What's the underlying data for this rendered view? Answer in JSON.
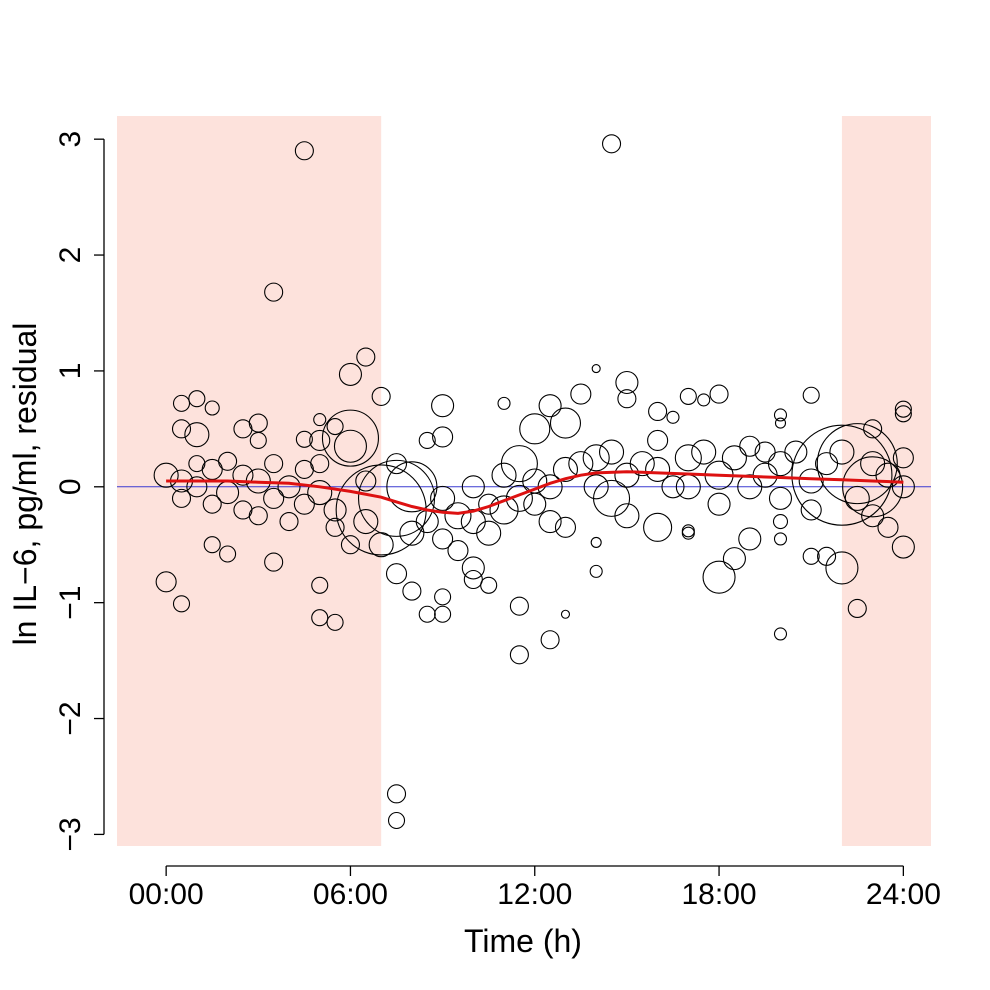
{
  "chart_data": {
    "type": "scatter",
    "xlabel": "Time (h)",
    "ylabel": "ln IL−6, pg/ml, residual",
    "x_unit": "hours",
    "xlim": [
      -1.6,
      24.9
    ],
    "ylim": [
      -3.1,
      3.2
    ],
    "x_ticks": [
      {
        "value": 0,
        "label": "00:00"
      },
      {
        "value": 6,
        "label": "06:00"
      },
      {
        "value": 12,
        "label": "12:00"
      },
      {
        "value": 18,
        "label": "18:00"
      },
      {
        "value": 24,
        "label": "24:00"
      }
    ],
    "y_ticks": [
      {
        "value": -3,
        "label": "−3"
      },
      {
        "value": -2,
        "label": "−2"
      },
      {
        "value": -1,
        "label": "−1"
      },
      {
        "value": 0,
        "label": "0"
      },
      {
        "value": 1,
        "label": "1"
      },
      {
        "value": 2,
        "label": "2"
      },
      {
        "value": 3,
        "label": "3"
      }
    ],
    "night_shading": [
      {
        "start": -1.6,
        "end": 7.0
      },
      {
        "start": 22.0,
        "end": 24.9
      }
    ],
    "colors": {
      "night_shading": "#fde2dc",
      "zero_line": "#3b3bd1",
      "trend_line": "#dd1111",
      "points": "#000000"
    },
    "reference_line_y": 0,
    "grid": false,
    "legend": "none",
    "trend": {
      "x": [
        0,
        1,
        2,
        3,
        4,
        5,
        6,
        7,
        7.5,
        8,
        8.5,
        9,
        9.5,
        10,
        10.5,
        11,
        11.5,
        12,
        12.5,
        13,
        13.5,
        14,
        15,
        16,
        17,
        18,
        19,
        20,
        21,
        22,
        23,
        24
      ],
      "y": [
        0.05,
        0.05,
        0.05,
        0.04,
        0.03,
        0.0,
        -0.04,
        -0.09,
        -0.13,
        -0.17,
        -0.2,
        -0.22,
        -0.23,
        -0.21,
        -0.17,
        -0.12,
        -0.07,
        -0.02,
        0.03,
        0.07,
        0.1,
        0.12,
        0.13,
        0.12,
        0.11,
        0.1,
        0.09,
        0.08,
        0.07,
        0.06,
        0.05,
        0.04
      ]
    },
    "points": [
      {
        "x": 0.0,
        "y": -0.82,
        "size": 10
      },
      {
        "x": 0.5,
        "y": -1.01,
        "size": 8
      },
      {
        "x": 0.5,
        "y": 0.72,
        "size": 8
      },
      {
        "x": 1.0,
        "y": 0.76,
        "size": 8
      },
      {
        "x": 1.5,
        "y": 0.68,
        "size": 7
      },
      {
        "x": 4.5,
        "y": 2.9,
        "size": 9
      },
      {
        "x": 3.5,
        "y": 1.68,
        "size": 9
      },
      {
        "x": 6.5,
        "y": 1.12,
        "size": 9
      },
      {
        "x": 6.0,
        "y": 0.97,
        "size": 11
      },
      {
        "x": 7.5,
        "y": -2.65,
        "size": 9
      },
      {
        "x": 7.5,
        "y": -2.88,
        "size": 8
      },
      {
        "x": 14.5,
        "y": 2.96,
        "size": 9
      },
      {
        "x": 5.0,
        "y": -0.85,
        "size": 8
      },
      {
        "x": 5.0,
        "y": -1.13,
        "size": 8
      },
      {
        "x": 5.5,
        "y": -1.17,
        "size": 8
      },
      {
        "x": 1.5,
        "y": -0.5,
        "size": 8
      },
      {
        "x": 2.0,
        "y": -0.58,
        "size": 8
      },
      {
        "x": 3.5,
        "y": -0.65,
        "size": 9
      },
      {
        "x": 0.5,
        "y": 0.5,
        "size": 9
      },
      {
        "x": 1.0,
        "y": 0.45,
        "size": 12
      },
      {
        "x": 2.5,
        "y": 0.5,
        "size": 9
      },
      {
        "x": 3.0,
        "y": 0.55,
        "size": 9
      },
      {
        "x": 5.0,
        "y": 0.58,
        "size": 6
      },
      {
        "x": 5.5,
        "y": 0.52,
        "size": 8
      },
      {
        "x": 6.0,
        "y": 0.42,
        "size": 28
      },
      {
        "x": 6.0,
        "y": 0.35,
        "size": 16
      },
      {
        "x": 7.0,
        "y": 0.78,
        "size": 9
      },
      {
        "x": 7.0,
        "y": -0.2,
        "size": 45
      },
      {
        "x": 7.5,
        "y": -0.1,
        "size": 38
      },
      {
        "x": 8.0,
        "y": 0.0,
        "size": 25
      },
      {
        "x": 8.5,
        "y": 0.4,
        "size": 8
      },
      {
        "x": 9.0,
        "y": 0.7,
        "size": 11
      },
      {
        "x": 9.0,
        "y": 0.43,
        "size": 10
      },
      {
        "x": 8.0,
        "y": -0.9,
        "size": 9
      },
      {
        "x": 8.5,
        "y": -1.1,
        "size": 8
      },
      {
        "x": 9.0,
        "y": -0.95,
        "size": 8
      },
      {
        "x": 9.0,
        "y": -1.1,
        "size": 8
      },
      {
        "x": 7.5,
        "y": -0.75,
        "size": 10
      },
      {
        "x": 10.0,
        "y": -0.7,
        "size": 11
      },
      {
        "x": 10.0,
        "y": -0.8,
        "size": 9
      },
      {
        "x": 10.5,
        "y": -0.85,
        "size": 8
      },
      {
        "x": 11.0,
        "y": 0.72,
        "size": 6
      },
      {
        "x": 11.5,
        "y": -1.03,
        "size": 9
      },
      {
        "x": 11.5,
        "y": -1.45,
        "size": 9
      },
      {
        "x": 12.5,
        "y": -1.32,
        "size": 9
      },
      {
        "x": 13.0,
        "y": -1.1,
        "size": 4
      },
      {
        "x": 12.0,
        "y": 0.5,
        "size": 15
      },
      {
        "x": 12.5,
        "y": 0.7,
        "size": 11
      },
      {
        "x": 13.0,
        "y": 0.55,
        "size": 15
      },
      {
        "x": 13.5,
        "y": 0.8,
        "size": 10
      },
      {
        "x": 14.0,
        "y": 1.02,
        "size": 4
      },
      {
        "x": 14.0,
        "y": -0.48,
        "size": 5
      },
      {
        "x": 14.0,
        "y": -0.73,
        "size": 6
      },
      {
        "x": 15.0,
        "y": 0.9,
        "size": 11
      },
      {
        "x": 15.0,
        "y": 0.76,
        "size": 9
      },
      {
        "x": 16.0,
        "y": 0.65,
        "size": 9
      },
      {
        "x": 16.5,
        "y": 0.6,
        "size": 6
      },
      {
        "x": 17.0,
        "y": 0.78,
        "size": 8
      },
      {
        "x": 17.5,
        "y": 0.75,
        "size": 6
      },
      {
        "x": 18.0,
        "y": 0.8,
        "size": 9
      },
      {
        "x": 18.0,
        "y": -0.78,
        "size": 16
      },
      {
        "x": 18.5,
        "y": -0.62,
        "size": 11
      },
      {
        "x": 19.0,
        "y": -0.45,
        "size": 11
      },
      {
        "x": 16.0,
        "y": -0.35,
        "size": 14
      },
      {
        "x": 17.0,
        "y": -0.38,
        "size": 6
      },
      {
        "x": 17.0,
        "y": -0.4,
        "size": 6
      },
      {
        "x": 20.0,
        "y": -1.27,
        "size": 6
      },
      {
        "x": 20.0,
        "y": -0.3,
        "size": 7
      },
      {
        "x": 20.0,
        "y": -0.45,
        "size": 6
      },
      {
        "x": 21.0,
        "y": 0.79,
        "size": 8
      },
      {
        "x": 21.0,
        "y": -0.6,
        "size": 8
      },
      {
        "x": 21.5,
        "y": -0.6,
        "size": 9
      },
      {
        "x": 22.0,
        "y": -0.7,
        "size": 16
      },
      {
        "x": 22.5,
        "y": -1.05,
        "size": 9
      },
      {
        "x": 22.0,
        "y": 0.1,
        "size": 50
      },
      {
        "x": 22.5,
        "y": 0.2,
        "size": 40
      },
      {
        "x": 23.0,
        "y": 0.0,
        "size": 30
      },
      {
        "x": 23.0,
        "y": 0.5,
        "size": 9
      },
      {
        "x": 24.0,
        "y": 0.67,
        "size": 8
      },
      {
        "x": 24.0,
        "y": 0.63,
        "size": 8
      },
      {
        "x": 24.0,
        "y": -0.52,
        "size": 11
      },
      {
        "x": 23.5,
        "y": -0.35,
        "size": 10
      },
      {
        "x": 20.0,
        "y": 0.62,
        "size": 6
      },
      {
        "x": 20.0,
        "y": 0.55,
        "size": 5
      },
      {
        "x": 19.5,
        "y": 0.3,
        "size": 10
      },
      {
        "x": 4.5,
        "y": 0.41,
        "size": 8
      },
      {
        "x": 5.0,
        "y": 0.4,
        "size": 10
      },
      {
        "x": 3.0,
        "y": 0.4,
        "size": 8
      },
      {
        "x": 0.0,
        "y": 0.1,
        "size": 12
      },
      {
        "x": 0.5,
        "y": 0.05,
        "size": 11
      },
      {
        "x": 1.0,
        "y": 0.0,
        "size": 10
      },
      {
        "x": 1.5,
        "y": 0.15,
        "size": 10
      },
      {
        "x": 2.0,
        "y": -0.05,
        "size": 11
      },
      {
        "x": 2.5,
        "y": 0.1,
        "size": 10
      },
      {
        "x": 3.0,
        "y": 0.05,
        "size": 12
      },
      {
        "x": 3.5,
        "y": -0.1,
        "size": 10
      },
      {
        "x": 4.0,
        "y": 0.0,
        "size": 11
      },
      {
        "x": 4.5,
        "y": -0.15,
        "size": 10
      },
      {
        "x": 5.0,
        "y": -0.05,
        "size": 12
      },
      {
        "x": 5.5,
        "y": -0.2,
        "size": 11
      },
      {
        "x": 0.5,
        "y": -0.1,
        "size": 9
      },
      {
        "x": 1.0,
        "y": 0.2,
        "size": 8
      },
      {
        "x": 1.5,
        "y": -0.15,
        "size": 9
      },
      {
        "x": 2.0,
        "y": 0.22,
        "size": 9
      },
      {
        "x": 2.5,
        "y": -0.2,
        "size": 9
      },
      {
        "x": 3.0,
        "y": -0.25,
        "size": 9
      },
      {
        "x": 3.5,
        "y": 0.2,
        "size": 9
      },
      {
        "x": 4.0,
        "y": -0.3,
        "size": 9
      },
      {
        "x": 4.5,
        "y": 0.15,
        "size": 9
      },
      {
        "x": 5.0,
        "y": 0.2,
        "size": 9
      },
      {
        "x": 5.5,
        "y": -0.35,
        "size": 9
      },
      {
        "x": 6.0,
        "y": -0.5,
        "size": 9
      },
      {
        "x": 6.5,
        "y": -0.3,
        "size": 12
      },
      {
        "x": 6.5,
        "y": 0.05,
        "size": 10
      },
      {
        "x": 7.0,
        "y": -0.5,
        "size": 12
      },
      {
        "x": 7.5,
        "y": 0.2,
        "size": 10
      },
      {
        "x": 8.0,
        "y": -0.4,
        "size": 12
      },
      {
        "x": 8.5,
        "y": -0.3,
        "size": 11
      },
      {
        "x": 9.0,
        "y": -0.1,
        "size": 12
      },
      {
        "x": 9.0,
        "y": -0.45,
        "size": 10
      },
      {
        "x": 9.5,
        "y": -0.25,
        "size": 13
      },
      {
        "x": 9.5,
        "y": -0.55,
        "size": 10
      },
      {
        "x": 10.0,
        "y": -0.3,
        "size": 12
      },
      {
        "x": 10.0,
        "y": 0.0,
        "size": 11
      },
      {
        "x": 10.5,
        "y": -0.4,
        "size": 12
      },
      {
        "x": 10.5,
        "y": -0.15,
        "size": 10
      },
      {
        "x": 11.0,
        "y": -0.2,
        "size": 14
      },
      {
        "x": 11.0,
        "y": 0.1,
        "size": 12
      },
      {
        "x": 11.5,
        "y": -0.1,
        "size": 13
      },
      {
        "x": 11.5,
        "y": 0.2,
        "size": 18
      },
      {
        "x": 12.0,
        "y": -0.15,
        "size": 11
      },
      {
        "x": 12.0,
        "y": 0.05,
        "size": 12
      },
      {
        "x": 12.5,
        "y": 0.0,
        "size": 12
      },
      {
        "x": 12.5,
        "y": -0.3,
        "size": 11
      },
      {
        "x": 13.0,
        "y": 0.15,
        "size": 12
      },
      {
        "x": 13.0,
        "y": -0.35,
        "size": 10
      },
      {
        "x": 13.5,
        "y": 0.2,
        "size": 12
      },
      {
        "x": 14.0,
        "y": 0.25,
        "size": 13
      },
      {
        "x": 14.0,
        "y": 0.0,
        "size": 12
      },
      {
        "x": 14.5,
        "y": -0.1,
        "size": 18
      },
      {
        "x": 14.5,
        "y": 0.3,
        "size": 12
      },
      {
        "x": 15.0,
        "y": 0.1,
        "size": 12
      },
      {
        "x": 15.0,
        "y": -0.25,
        "size": 12
      },
      {
        "x": 15.5,
        "y": 0.2,
        "size": 12
      },
      {
        "x": 16.0,
        "y": 0.15,
        "size": 12
      },
      {
        "x": 16.0,
        "y": 0.4,
        "size": 10
      },
      {
        "x": 16.5,
        "y": 0.0,
        "size": 11
      },
      {
        "x": 17.0,
        "y": 0.25,
        "size": 13
      },
      {
        "x": 17.0,
        "y": 0.0,
        "size": 12
      },
      {
        "x": 17.5,
        "y": 0.3,
        "size": 12
      },
      {
        "x": 18.0,
        "y": 0.1,
        "size": 14
      },
      {
        "x": 18.0,
        "y": -0.15,
        "size": 11
      },
      {
        "x": 18.5,
        "y": 0.25,
        "size": 12
      },
      {
        "x": 19.0,
        "y": 0.0,
        "size": 12
      },
      {
        "x": 19.0,
        "y": 0.35,
        "size": 10
      },
      {
        "x": 19.5,
        "y": 0.1,
        "size": 12
      },
      {
        "x": 20.0,
        "y": 0.2,
        "size": 12
      },
      {
        "x": 20.0,
        "y": -0.1,
        "size": 11
      },
      {
        "x": 20.5,
        "y": 0.3,
        "size": 11
      },
      {
        "x": 21.0,
        "y": 0.05,
        "size": 12
      },
      {
        "x": 21.0,
        "y": -0.2,
        "size": 10
      },
      {
        "x": 21.5,
        "y": 0.2,
        "size": 11
      },
      {
        "x": 22.0,
        "y": 0.3,
        "size": 12
      },
      {
        "x": 22.5,
        "y": -0.1,
        "size": 12
      },
      {
        "x": 23.0,
        "y": 0.2,
        "size": 12
      },
      {
        "x": 23.0,
        "y": -0.25,
        "size": 11
      },
      {
        "x": 23.5,
        "y": 0.1,
        "size": 12
      },
      {
        "x": 24.0,
        "y": 0.0,
        "size": 11
      },
      {
        "x": 24.0,
        "y": 0.25,
        "size": 10
      }
    ]
  }
}
